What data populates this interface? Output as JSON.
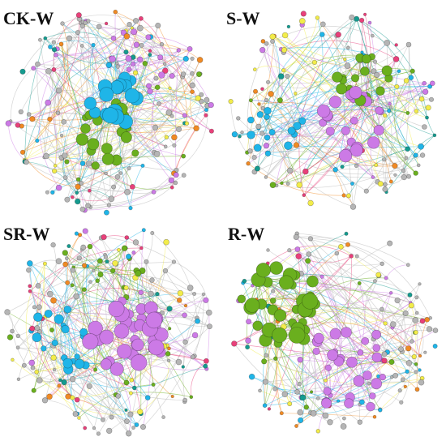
{
  "figure": {
    "panels": [
      {
        "id": "ck-w",
        "label": "CK-W"
      },
      {
        "id": "s-w",
        "label": "S-W"
      },
      {
        "id": "sr-w",
        "label": "SR-W"
      },
      {
        "id": "r-w",
        "label": "R-W"
      }
    ]
  },
  "palette": {
    "blue": "#1fb5e8",
    "green": "#6aaf1e",
    "violet": "#cc7ae6",
    "grey": "#b5b5b5",
    "orange": "#f08a24",
    "pink": "#e8407a",
    "yellow": "#f2ec4a",
    "teal": "#159b8f"
  }
}
